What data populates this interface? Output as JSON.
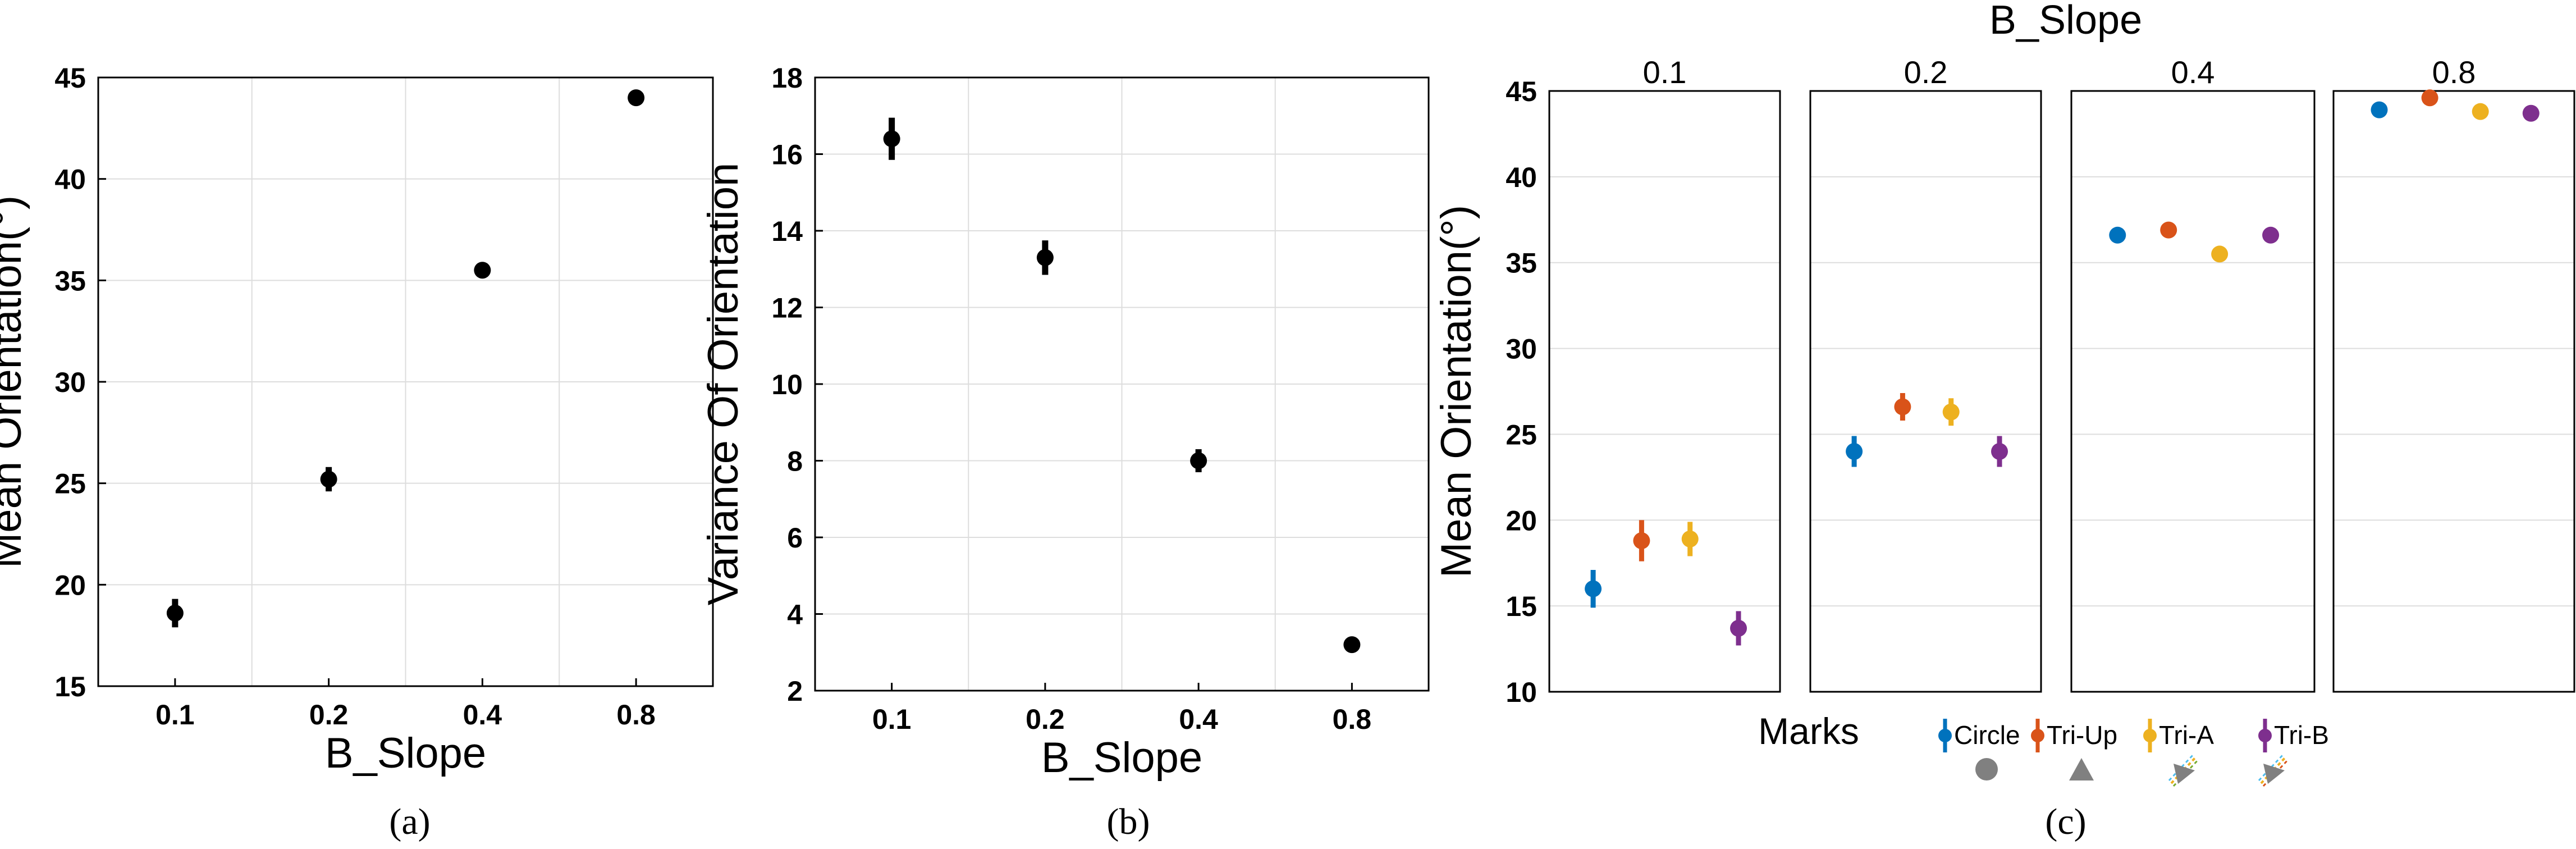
{
  "captions": [
    "(a)",
    "(b)",
    "(c)"
  ],
  "colors": {
    "Circle": "#0072BD",
    "Tri-Up": "#D95319",
    "Tri-A": "#EDB120",
    "Tri-B": "#7E2F8E",
    "point": "#000000",
    "grid": "#dddddd",
    "icon": "#808080"
  },
  "chart_data": [
    {
      "type": "scatter",
      "xlabel": "B_Slope",
      "ylabel": "Mean Orientation(°)",
      "categories": [
        "0.1",
        "0.2",
        "0.4",
        "0.8"
      ],
      "ylim": [
        15,
        45
      ],
      "yticks": [
        15,
        20,
        25,
        30,
        35,
        40,
        45
      ],
      "grid": true,
      "values": [
        18.6,
        25.2,
        35.5,
        44.0
      ],
      "error": [
        0.7,
        0.6,
        0.2,
        0.2
      ]
    },
    {
      "type": "scatter",
      "xlabel": "B_Slope",
      "ylabel": "Variance Of Orientation",
      "categories": [
        "0.1",
        "0.2",
        "0.4",
        "0.8"
      ],
      "ylim": [
        2,
        18
      ],
      "yticks": [
        2,
        4,
        6,
        8,
        10,
        12,
        14,
        16,
        18
      ],
      "grid": true,
      "values": [
        16.4,
        13.3,
        8.0,
        3.2
      ],
      "error": [
        0.55,
        0.45,
        0.3,
        0.15
      ]
    },
    {
      "type": "scatter",
      "title": "B_Slope",
      "facets": [
        "0.1",
        "0.2",
        "0.4",
        "0.8"
      ],
      "ylabel": "Mean Orientation(°)",
      "ylim": [
        10,
        45
      ],
      "yticks": [
        10,
        15,
        20,
        25,
        30,
        35,
        40,
        45
      ],
      "grid": true,
      "legend_title": "Marks",
      "legend_position": "bottom",
      "series": [
        {
          "name": "Circle",
          "values": [
            16.0,
            24.0,
            36.6,
            43.9
          ],
          "error": [
            1.1,
            0.9,
            0.2,
            0.2
          ]
        },
        {
          "name": "Tri-Up",
          "values": [
            18.8,
            26.6,
            36.9,
            44.6
          ],
          "error": [
            1.2,
            0.8,
            0.2,
            0.2
          ]
        },
        {
          "name": "Tri-A",
          "values": [
            18.9,
            26.3,
            35.5,
            43.8
          ],
          "error": [
            1.0,
            0.8,
            0.2,
            0.2
          ]
        },
        {
          "name": "Tri-B",
          "values": [
            13.7,
            24.0,
            36.6,
            43.7
          ],
          "error": [
            1.0,
            0.9,
            0.2,
            0.2
          ]
        }
      ]
    }
  ]
}
